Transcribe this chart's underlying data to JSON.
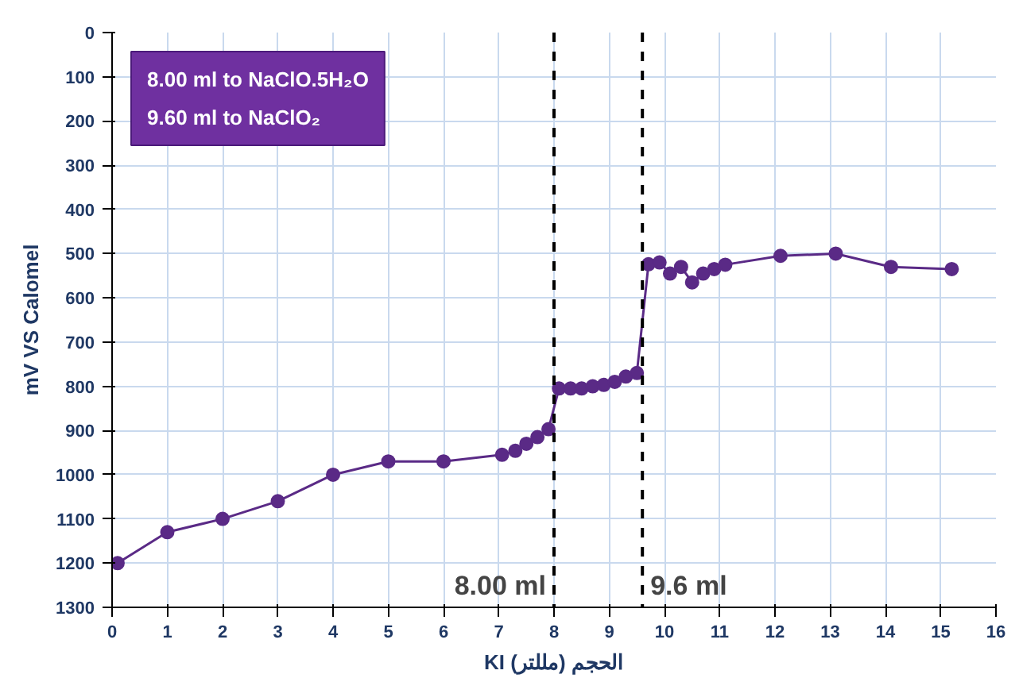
{
  "chart_data": {
    "type": "line",
    "xlabel": "KI الحجم (مللتر)",
    "ylabel": "mV VS Calomel",
    "x": [
      0.1,
      1.0,
      2.0,
      3.0,
      4.0,
      5.0,
      6.0,
      7.06,
      7.3,
      7.5,
      7.7,
      7.9,
      8.09,
      8.3,
      8.5,
      8.7,
      8.9,
      9.1,
      9.3,
      9.5,
      9.71,
      9.91,
      10.1,
      10.3,
      10.5,
      10.7,
      10.9,
      11.1,
      12.1,
      13.1,
      14.1,
      15.2
    ],
    "series": [
      {
        "color": "#5a2a86",
        "values": [
          1200,
          1130,
          1100,
          1060,
          1000,
          970,
          970,
          955,
          946,
          930,
          915,
          897,
          805,
          805,
          805,
          800,
          797,
          790,
          778,
          770,
          524,
          520,
          545,
          530,
          565,
          545,
          535,
          525,
          505,
          500,
          530,
          535
        ]
      }
    ],
    "marker": "circle",
    "line_style": "solid",
    "grid": true,
    "xlim": [
      0,
      16
    ],
    "xticks": [
      0,
      1,
      2,
      3,
      4,
      5,
      6,
      7,
      8,
      9,
      10,
      11,
      12,
      13,
      14,
      15,
      16
    ],
    "ylim": [
      1300,
      0
    ],
    "yticks": [
      0,
      100,
      200,
      300,
      400,
      500,
      600,
      700,
      800,
      900,
      1000,
      1100,
      1200,
      1300
    ],
    "ref_lines": [
      {
        "axis": "x",
        "value": 8.0,
        "label": "8.00 ml",
        "color": "#000000",
        "line_style": "dashed"
      },
      {
        "axis": "x",
        "value": 9.6,
        "label": "9.6 ml",
        "color": "#000000",
        "line_style": "dashed"
      }
    ],
    "annotations": [
      "8.00 ml to NaClO.5H₂O",
      "9.60 ml to NaClO₂"
    ]
  }
}
